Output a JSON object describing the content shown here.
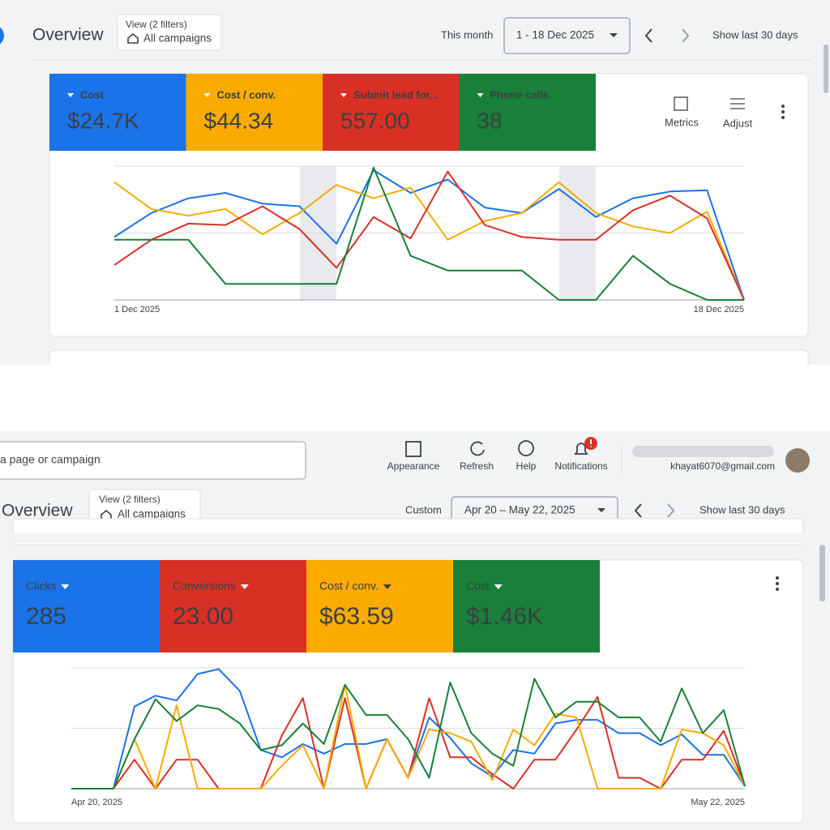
{
  "top": {
    "title": "Overview",
    "filter_label": "View (2 filters)",
    "filter_value": "All campaigns",
    "range_label": "This month",
    "date_range": "1 - 18 Dec 2025",
    "show_last": "Show last 30 days",
    "tools": [
      "Metrics",
      "Adjust"
    ]
  },
  "bottom": {
    "search_placeholder": "a page or campaign",
    "toolbar": [
      "Appearance",
      "Refresh",
      "Help",
      "Notifications"
    ],
    "email": "khayat6070@gmail.com",
    "title": "Overview",
    "filter_label": "View (2 filters)",
    "filter_value": "All campaigns",
    "range_label": "Custom",
    "date_range": "Apr 20 – May 22, 2025",
    "show_last": "Show last 30 days"
  },
  "chart_data": [
    {
      "type": "line",
      "categories": [
        "1 Dec 2025",
        null,
        null,
        null,
        null,
        null,
        null,
        null,
        null,
        null,
        null,
        null,
        null,
        null,
        null,
        null,
        null,
        "18 Dec 2025"
      ],
      "ylim": [
        0,
        100
      ],
      "yticks": [
        0,
        50,
        100
      ],
      "grid": true,
      "series": [
        {
          "name": "Cost",
          "summary": "$24.7K",
          "color": "#1a73e8",
          "values": [
            47,
            65,
            76,
            80,
            72,
            70,
            42,
            97,
            80,
            90,
            69,
            65,
            83,
            62,
            76,
            81,
            82,
            0
          ]
        },
        {
          "name": "Cost / conv.",
          "summary": "$44.34",
          "color": "#f9ab00",
          "values": [
            88,
            68,
            63,
            68,
            49,
            65,
            86,
            76,
            84,
            45,
            59,
            65,
            88,
            65,
            55,
            50,
            66,
            0
          ]
        },
        {
          "name": "Submit lead for...",
          "summary": "557.00",
          "color": "#d93025",
          "values": [
            26,
            45,
            57,
            56,
            70,
            53,
            24,
            62,
            46,
            96,
            56,
            47,
            45,
            45,
            67,
            78,
            61,
            0
          ]
        },
        {
          "name": "Phone calls",
          "summary": "38",
          "color": "#188038",
          "values": [
            45,
            45,
            45,
            12,
            12,
            12,
            12,
            99,
            33,
            22,
            22,
            22,
            0,
            0,
            33,
            12,
            0,
            0
          ]
        }
      ]
    },
    {
      "type": "line",
      "categories": [
        "Apr 20, 2025",
        null,
        null,
        null,
        null,
        null,
        null,
        null,
        null,
        null,
        null,
        null,
        null,
        null,
        null,
        null,
        null,
        null,
        null,
        null,
        null,
        null,
        null,
        null,
        null,
        null,
        null,
        null,
        null,
        null,
        null,
        null,
        "May 22, 2025"
      ],
      "ylim": [
        0,
        100
      ],
      "yticks": [
        0,
        50,
        100
      ],
      "grid": true,
      "series": [
        {
          "name": "Clicks",
          "summary": "285",
          "color": "#1a73e8",
          "values": [
            0,
            0,
            0,
            68,
            77,
            73,
            95,
            99,
            81,
            32,
            26,
            37,
            29,
            37,
            37,
            41,
            9,
            59,
            42,
            21,
            10,
            32,
            29,
            54,
            57,
            57,
            46,
            46,
            36,
            45,
            28,
            28,
            2
          ]
        },
        {
          "name": "Conversions",
          "summary": "23.00",
          "color": "#d93025",
          "values": [
            0,
            0,
            0,
            24,
            0,
            24,
            24,
            0,
            0,
            0,
            44,
            75,
            0,
            75,
            0,
            41,
            9,
            75,
            26,
            26,
            12,
            0,
            24,
            24,
            49,
            76,
            9,
            9,
            0,
            24,
            24,
            48,
            2
          ]
        },
        {
          "name": "Cost / conv.",
          "summary": "$63.59",
          "color": "#f9ab00",
          "values": [
            0,
            0,
            0,
            41,
            0,
            69,
            0,
            0,
            0,
            0,
            19,
            36,
            0,
            86,
            0,
            41,
            9,
            49,
            46,
            39,
            7,
            49,
            36,
            62,
            59,
            0,
            0,
            0,
            0,
            49,
            46,
            36,
            2
          ]
        },
        {
          "name": "Cost",
          "summary": "$1.46K",
          "color": "#188038",
          "values": [
            0,
            0,
            0,
            41,
            74,
            56,
            69,
            66,
            54,
            32,
            36,
            54,
            37,
            86,
            61,
            61,
            41,
            9,
            88,
            46,
            29,
            19,
            91,
            59,
            72,
            72,
            59,
            59,
            39,
            83,
            46,
            65,
            2
          ]
        }
      ]
    }
  ]
}
